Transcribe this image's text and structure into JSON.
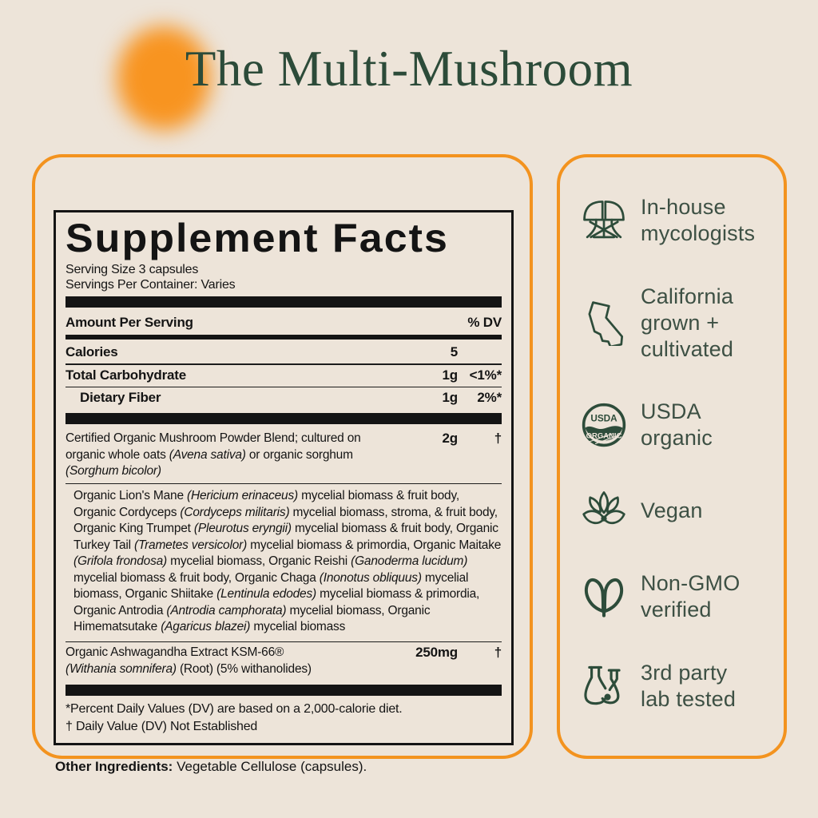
{
  "page": {
    "title": "The Multi-Mushroom"
  },
  "facts": {
    "title": "Supplement Facts",
    "serving_size": "Serving Size 3 capsules",
    "servings_per_container": "Servings Per Container: Varies",
    "amount_header": "Amount Per Serving",
    "dv_header": "% DV",
    "rows": [
      {
        "name": "Calories",
        "amount": "5",
        "dv": ""
      },
      {
        "name": "Total Carbohydrate",
        "amount": "1g",
        "dv": "<1%*"
      },
      {
        "name": "Dietary Fiber",
        "amount": "1g",
        "dv": "2%*"
      }
    ],
    "blend": {
      "name_segments": [
        {
          "t": "Certified Organic Mushroom Powder Blend; cultured on organic whole oats ",
          "i": false
        },
        {
          "t": "(Avena sativa)",
          "i": true
        },
        {
          "t": " or organic sorghum ",
          "i": false
        },
        {
          "t": "(Sorghum bicolor)",
          "i": true
        }
      ],
      "amount": "2g",
      "dv": "†"
    },
    "blend_detail_segments": [
      {
        "t": "Organic Lion's Mane ",
        "i": false
      },
      {
        "t": "(Hericium erinaceus)",
        "i": true
      },
      {
        "t": " mycelial biomass & fruit body, Organic Cordyceps ",
        "i": false
      },
      {
        "t": "(Cordyceps militaris)",
        "i": true
      },
      {
        "t": " mycelial biomass, stroma, & fruit body, Organic King Trumpet ",
        "i": false
      },
      {
        "t": "(Pleurotus eryngii)",
        "i": true
      },
      {
        "t": " mycelial biomass & fruit body, Organic Turkey Tail ",
        "i": false
      },
      {
        "t": "(Trametes versicolor)",
        "i": true
      },
      {
        "t": " mycelial biomass & primordia, Organic Maitake ",
        "i": false
      },
      {
        "t": "(Grifola frondosa)",
        "i": true
      },
      {
        "t": " mycelial biomass, Organic Reishi ",
        "i": false
      },
      {
        "t": "(Ganoderma lucidum)",
        "i": true
      },
      {
        "t": " mycelial biomass & fruit body, Organic Chaga ",
        "i": false
      },
      {
        "t": "(Inonotus obliquus)",
        "i": true
      },
      {
        "t": " mycelial biomass, Organic Shiitake ",
        "i": false
      },
      {
        "t": "(Lentinula edodes)",
        "i": true
      },
      {
        "t": " mycelial biomass & primordia, Organic Antrodia ",
        "i": false
      },
      {
        "t": "(Antrodia camphorata)",
        "i": true
      },
      {
        "t": " mycelial biomass, Organic Himematsutake ",
        "i": false
      },
      {
        "t": "(Agaricus blazei)",
        "i": true
      },
      {
        "t": " mycelial biomass",
        "i": false
      }
    ],
    "ashwagandha": {
      "name": "Organic Ashwagandha Extract KSM-66®",
      "detail_segments": [
        {
          "t": "(Withania somnifera)",
          "i": true
        },
        {
          "t": " (Root) (5% withanolides)",
          "i": false
        }
      ],
      "amount": "250mg",
      "dv": "†"
    },
    "footnotes": [
      "*Percent Daily Values (DV) are based on a 2,000-calorie diet.",
      "† Daily Value (DV) Not Established"
    ],
    "other_ingredients_label": "Other Ingredients:",
    "other_ingredients_text": " Vegetable Cellulose (capsules)."
  },
  "features": [
    {
      "icon": "mushroom-icon",
      "label": "In-house\nmycologists"
    },
    {
      "icon": "california-icon",
      "label": "California\ngrown +\ncultivated"
    },
    {
      "icon": "usda-organic-icon",
      "label": "USDA\norganic",
      "badge_top": "USDA",
      "badge_bottom": "ORGANIC"
    },
    {
      "icon": "vegan-lotus-icon",
      "label": "Vegan"
    },
    {
      "icon": "butterfly-icon",
      "label": "Non-GMO\nverified"
    },
    {
      "icon": "lab-flasks-icon",
      "label": "3rd party\nlab tested"
    }
  ],
  "colors": {
    "background": "#EDE4D9",
    "accent_orange": "#F3931F",
    "blob_orange": "#F89420",
    "brand_green": "#2D4C3A",
    "feature_text": "#3D5044",
    "text_black": "#141414"
  }
}
